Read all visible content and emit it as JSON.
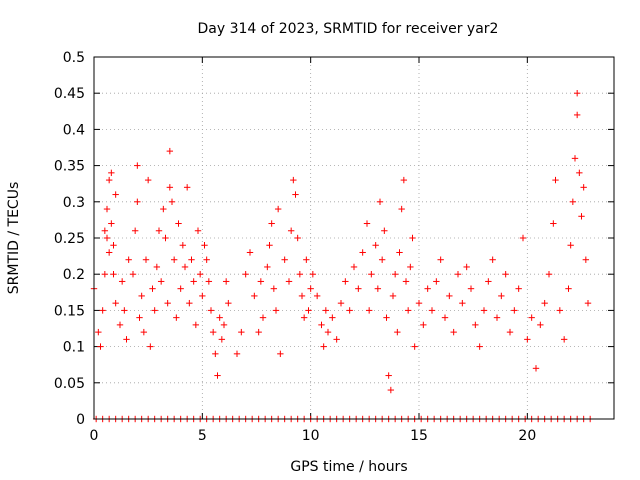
{
  "chart_data": {
    "type": "scatter",
    "title": "Day 314 of 2023, SRMTID for receiver yar2",
    "xlabel": "GPS time / hours",
    "ylabel": "SRMTID / TECUs",
    "xlim": [
      0,
      24
    ],
    "ylim": [
      0,
      0.5
    ],
    "xticks": [
      0,
      5,
      10,
      15,
      20
    ],
    "xtick_labels": [
      "0",
      "5",
      "10",
      "15",
      "20"
    ],
    "yticks": [
      0,
      0.05,
      0.1,
      0.15,
      0.2,
      0.25,
      0.3,
      0.35,
      0.4,
      0.45,
      0.5
    ],
    "ytick_labels": [
      "0",
      "0.05",
      "0.1",
      "0.15",
      "0.2",
      "0.25",
      "0.3",
      "0.35",
      "0.4",
      "0.45",
      "0.5"
    ],
    "grid": true,
    "marker": "+",
    "marker_color": "#ff0000",
    "series": [
      {
        "name": "SRMTID",
        "points": [
          [
            0.0,
            0.18
          ],
          [
            0.2,
            0.12
          ],
          [
            0.3,
            0.1
          ],
          [
            0.4,
            0.15
          ],
          [
            0.5,
            0.2
          ],
          [
            0.5,
            0.26
          ],
          [
            0.6,
            0.25
          ],
          [
            0.6,
            0.29
          ],
          [
            0.7,
            0.33
          ],
          [
            0.7,
            0.23
          ],
          [
            0.8,
            0.27
          ],
          [
            0.8,
            0.34
          ],
          [
            0.9,
            0.2
          ],
          [
            0.9,
            0.24
          ],
          [
            1.0,
            0.16
          ],
          [
            1.0,
            0.31
          ],
          [
            1.2,
            0.13
          ],
          [
            1.3,
            0.19
          ],
          [
            1.4,
            0.15
          ],
          [
            1.5,
            0.11
          ],
          [
            1.6,
            0.22
          ],
          [
            1.8,
            0.2
          ],
          [
            1.9,
            0.26
          ],
          [
            2.0,
            0.3
          ],
          [
            2.0,
            0.35
          ],
          [
            2.1,
            0.14
          ],
          [
            2.2,
            0.17
          ],
          [
            2.3,
            0.12
          ],
          [
            2.4,
            0.22
          ],
          [
            2.5,
            0.33
          ],
          [
            2.6,
            0.1
          ],
          [
            2.7,
            0.18
          ],
          [
            2.8,
            0.15
          ],
          [
            2.9,
            0.21
          ],
          [
            3.0,
            0.26
          ],
          [
            3.1,
            0.19
          ],
          [
            3.2,
            0.29
          ],
          [
            3.3,
            0.25
          ],
          [
            3.4,
            0.16
          ],
          [
            3.5,
            0.37
          ],
          [
            3.5,
            0.32
          ],
          [
            3.6,
            0.3
          ],
          [
            3.7,
            0.22
          ],
          [
            3.8,
            0.14
          ],
          [
            3.9,
            0.27
          ],
          [
            4.0,
            0.18
          ],
          [
            4.1,
            0.24
          ],
          [
            4.2,
            0.21
          ],
          [
            4.3,
            0.32
          ],
          [
            4.4,
            0.16
          ],
          [
            4.5,
            0.22
          ],
          [
            4.6,
            0.19
          ],
          [
            4.7,
            0.13
          ],
          [
            4.8,
            0.26
          ],
          [
            4.9,
            0.2
          ],
          [
            5.0,
            0.17
          ],
          [
            5.1,
            0.24
          ],
          [
            5.2,
            0.22
          ],
          [
            5.3,
            0.19
          ],
          [
            5.4,
            0.15
          ],
          [
            5.5,
            0.12
          ],
          [
            5.6,
            0.09
          ],
          [
            5.7,
            0.06
          ],
          [
            5.8,
            0.14
          ],
          [
            5.9,
            0.11
          ],
          [
            6.0,
            0.13
          ],
          [
            6.1,
            0.19
          ],
          [
            6.2,
            0.16
          ],
          [
            6.6,
            0.09
          ],
          [
            6.8,
            0.12
          ],
          [
            7.0,
            0.2
          ],
          [
            7.2,
            0.23
          ],
          [
            7.4,
            0.17
          ],
          [
            7.6,
            0.12
          ],
          [
            7.7,
            0.19
          ],
          [
            7.8,
            0.14
          ],
          [
            8.0,
            0.21
          ],
          [
            8.1,
            0.24
          ],
          [
            8.2,
            0.27
          ],
          [
            8.3,
            0.18
          ],
          [
            8.4,
            0.15
          ],
          [
            8.5,
            0.29
          ],
          [
            8.6,
            0.09
          ],
          [
            8.8,
            0.22
          ],
          [
            9.0,
            0.19
          ],
          [
            9.1,
            0.26
          ],
          [
            9.2,
            0.33
          ],
          [
            9.3,
            0.31
          ],
          [
            9.4,
            0.25
          ],
          [
            9.5,
            0.2
          ],
          [
            9.6,
            0.17
          ],
          [
            9.7,
            0.14
          ],
          [
            9.8,
            0.22
          ],
          [
            9.9,
            0.15
          ],
          [
            10.0,
            0.18
          ],
          [
            10.1,
            0.2
          ],
          [
            10.3,
            0.17
          ],
          [
            10.5,
            0.13
          ],
          [
            10.6,
            0.1
          ],
          [
            10.7,
            0.15
          ],
          [
            10.8,
            0.12
          ],
          [
            11.0,
            0.14
          ],
          [
            11.2,
            0.11
          ],
          [
            11.4,
            0.16
          ],
          [
            11.6,
            0.19
          ],
          [
            11.8,
            0.15
          ],
          [
            12.0,
            0.21
          ],
          [
            12.2,
            0.18
          ],
          [
            12.4,
            0.23
          ],
          [
            12.6,
            0.27
          ],
          [
            12.7,
            0.15
          ],
          [
            12.8,
            0.2
          ],
          [
            13.0,
            0.24
          ],
          [
            13.1,
            0.18
          ],
          [
            13.2,
            0.3
          ],
          [
            13.3,
            0.22
          ],
          [
            13.4,
            0.26
          ],
          [
            13.5,
            0.14
          ],
          [
            13.6,
            0.06
          ],
          [
            13.7,
            0.04
          ],
          [
            13.8,
            0.17
          ],
          [
            13.9,
            0.2
          ],
          [
            14.0,
            0.12
          ],
          [
            14.1,
            0.23
          ],
          [
            14.2,
            0.29
          ],
          [
            14.3,
            0.33
          ],
          [
            14.4,
            0.19
          ],
          [
            14.5,
            0.15
          ],
          [
            14.6,
            0.21
          ],
          [
            14.7,
            0.25
          ],
          [
            14.8,
            0.1
          ],
          [
            15.0,
            0.16
          ],
          [
            15.2,
            0.13
          ],
          [
            15.4,
            0.18
          ],
          [
            15.6,
            0.15
          ],
          [
            15.8,
            0.19
          ],
          [
            16.0,
            0.22
          ],
          [
            16.2,
            0.14
          ],
          [
            16.4,
            0.17
          ],
          [
            16.6,
            0.12
          ],
          [
            16.8,
            0.2
          ],
          [
            17.0,
            0.16
          ],
          [
            17.2,
            0.21
          ],
          [
            17.4,
            0.18
          ],
          [
            17.6,
            0.13
          ],
          [
            17.8,
            0.1
          ],
          [
            18.0,
            0.15
          ],
          [
            18.2,
            0.19
          ],
          [
            18.4,
            0.22
          ],
          [
            18.6,
            0.14
          ],
          [
            18.8,
            0.17
          ],
          [
            19.0,
            0.2
          ],
          [
            19.2,
            0.12
          ],
          [
            19.4,
            0.15
          ],
          [
            19.6,
            0.18
          ],
          [
            19.8,
            0.25
          ],
          [
            20.0,
            0.11
          ],
          [
            20.2,
            0.14
          ],
          [
            20.4,
            0.07
          ],
          [
            20.6,
            0.13
          ],
          [
            20.8,
            0.16
          ],
          [
            21.0,
            0.2
          ],
          [
            21.2,
            0.27
          ],
          [
            21.3,
            0.33
          ],
          [
            21.5,
            0.15
          ],
          [
            21.7,
            0.11
          ],
          [
            21.9,
            0.18
          ],
          [
            22.0,
            0.24
          ],
          [
            22.1,
            0.3
          ],
          [
            22.2,
            0.36
          ],
          [
            22.3,
            0.42
          ],
          [
            22.3,
            0.45
          ],
          [
            22.4,
            0.34
          ],
          [
            22.5,
            0.28
          ],
          [
            22.6,
            0.32
          ],
          [
            22.7,
            0.22
          ],
          [
            22.8,
            0.16
          ]
        ],
        "zero_points": [
          0.1,
          0.4,
          0.7,
          1.0,
          1.3,
          1.6,
          1.9,
          2.2,
          2.5,
          2.8,
          3.1,
          3.4,
          3.7,
          4.0,
          4.3,
          4.6,
          4.9,
          5.2,
          5.5,
          5.8,
          6.1,
          6.4,
          6.7,
          7.0,
          7.3,
          7.6,
          7.9,
          8.2,
          8.5,
          8.8,
          9.1,
          9.4,
          9.7,
          10.0,
          10.3,
          10.6,
          10.9,
          11.2,
          11.5,
          11.8,
          12.1,
          12.4,
          12.7,
          13.0,
          13.3,
          13.6,
          13.9,
          14.2,
          14.5,
          14.8,
          15.1,
          15.4,
          15.7,
          16.0,
          16.3,
          16.6,
          16.9,
          17.2,
          17.5,
          17.8,
          18.1,
          18.4,
          18.7,
          19.0,
          19.3,
          19.6,
          19.9,
          20.2,
          20.5,
          20.8,
          21.1,
          21.4,
          21.7,
          22.0,
          22.3,
          22.6,
          22.9
        ]
      }
    ]
  }
}
